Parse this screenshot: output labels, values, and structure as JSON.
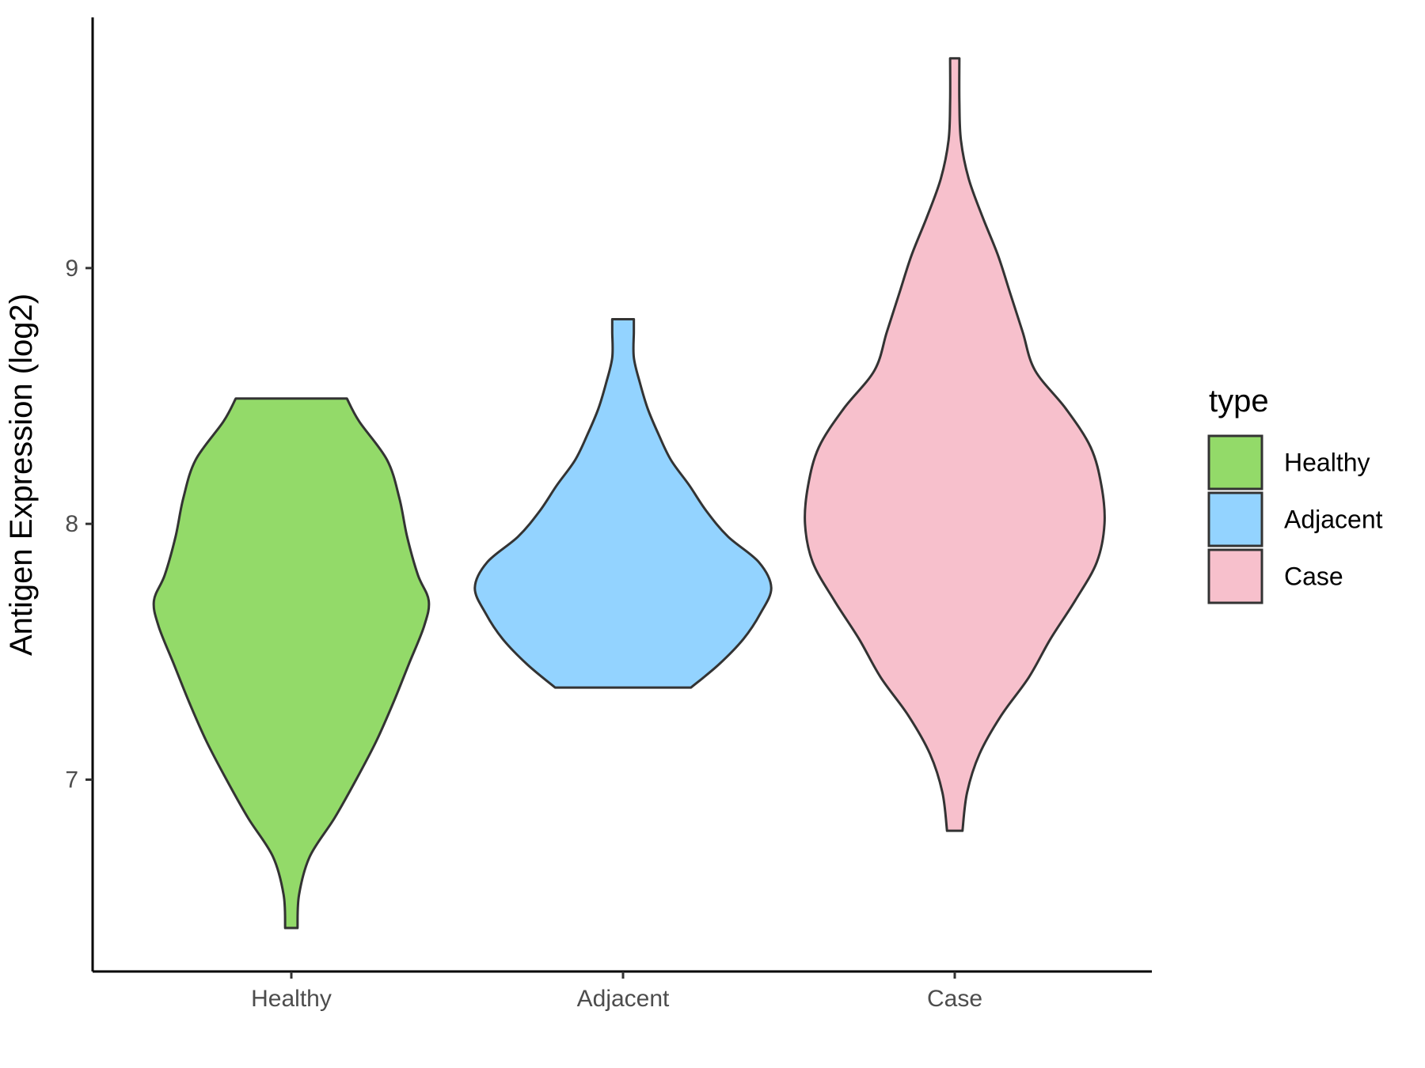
{
  "chart_data": {
    "type": "violin",
    "ylabel": "Antigen Expression (log2)",
    "xlabel": "",
    "ylim": [
      6.25,
      9.98
    ],
    "yticks": [
      7,
      8,
      9
    ],
    "categories": [
      "Healthy",
      "Adjacent",
      "Case"
    ],
    "legend": {
      "title": "type",
      "position": "right",
      "entries": [
        "Healthy",
        "Adjacent",
        "Case"
      ]
    },
    "grid": false,
    "outline_color": "#333333",
    "series": [
      {
        "name": "Healthy",
        "color": "#93DA69",
        "min": 6.42,
        "max": 8.49,
        "density_profile": [
          [
            6.42,
            0.04
          ],
          [
            6.55,
            0.05
          ],
          [
            6.7,
            0.12
          ],
          [
            6.85,
            0.28
          ],
          [
            7.0,
            0.42
          ],
          [
            7.15,
            0.55
          ],
          [
            7.3,
            0.66
          ],
          [
            7.45,
            0.76
          ],
          [
            7.6,
            0.86
          ],
          [
            7.7,
            0.89
          ],
          [
            7.8,
            0.82
          ],
          [
            7.95,
            0.75
          ],
          [
            8.1,
            0.7
          ],
          [
            8.25,
            0.62
          ],
          [
            8.4,
            0.44
          ],
          [
            8.49,
            0.36
          ]
        ]
      },
      {
        "name": "Adjacent",
        "color": "#93D3FF",
        "min": 7.36,
        "max": 8.8,
        "density_profile": [
          [
            7.36,
            0.44
          ],
          [
            7.45,
            0.62
          ],
          [
            7.55,
            0.78
          ],
          [
            7.65,
            0.89
          ],
          [
            7.75,
            0.96
          ],
          [
            7.85,
            0.88
          ],
          [
            7.95,
            0.68
          ],
          [
            8.05,
            0.54
          ],
          [
            8.15,
            0.43
          ],
          [
            8.25,
            0.31
          ],
          [
            8.35,
            0.23
          ],
          [
            8.45,
            0.16
          ],
          [
            8.55,
            0.11
          ],
          [
            8.65,
            0.07
          ],
          [
            8.75,
            0.07
          ],
          [
            8.8,
            0.07
          ]
        ]
      },
      {
        "name": "Case",
        "color": "#F7C0CC",
        "min": 6.8,
        "max": 9.82,
        "density_profile": [
          [
            6.8,
            0.05
          ],
          [
            6.95,
            0.08
          ],
          [
            7.1,
            0.16
          ],
          [
            7.25,
            0.3
          ],
          [
            7.4,
            0.48
          ],
          [
            7.55,
            0.62
          ],
          [
            7.7,
            0.78
          ],
          [
            7.85,
            0.92
          ],
          [
            8.0,
            0.97
          ],
          [
            8.15,
            0.95
          ],
          [
            8.3,
            0.88
          ],
          [
            8.45,
            0.72
          ],
          [
            8.6,
            0.52
          ],
          [
            8.75,
            0.44
          ],
          [
            8.9,
            0.36
          ],
          [
            9.05,
            0.28
          ],
          [
            9.2,
            0.18
          ],
          [
            9.35,
            0.09
          ],
          [
            9.5,
            0.04
          ],
          [
            9.65,
            0.03
          ],
          [
            9.82,
            0.03
          ]
        ]
      }
    ]
  }
}
